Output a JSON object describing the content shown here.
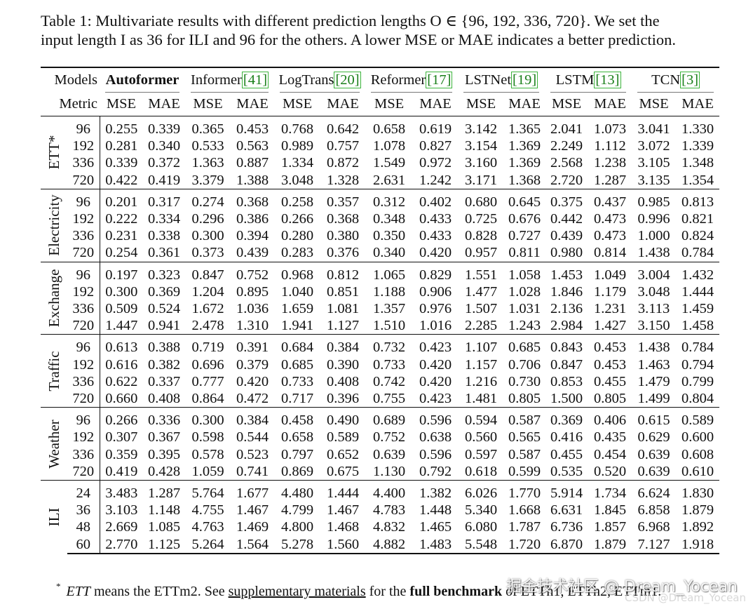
{
  "caption": {
    "line1": "Table 1: Multivariate results with different prediction lengths O ∈ {96, 192, 336, 720}. We set the",
    "line2": "input length I as 36 for ILI and 96 for the others. A lower MSE or MAE indicates a better prediction."
  },
  "header": {
    "models_label": "Models",
    "metric_label": "Metric",
    "models": [
      {
        "name": "Autoformer",
        "ref": ""
      },
      {
        "name": "Informer",
        "ref": "[41]"
      },
      {
        "name": "LogTrans",
        "ref": "[20]"
      },
      {
        "name": "Reformer",
        "ref": "[17]"
      },
      {
        "name": "LSTNet",
        "ref": "[19]"
      },
      {
        "name": "LSTM",
        "ref": "[13]"
      },
      {
        "name": "TCN",
        "ref": "[3]"
      }
    ],
    "metrics": [
      "MSE",
      "MAE"
    ]
  },
  "groups": [
    {
      "dataset": "ETT*",
      "rows": [
        {
          "len": "96",
          "values": [
            "0.255",
            "0.339",
            "0.365",
            "0.453",
            "0.768",
            "0.642",
            "0.658",
            "0.619",
            "3.142",
            "1.365",
            "2.041",
            "1.073",
            "3.041",
            "1.330"
          ]
        },
        {
          "len": "192",
          "values": [
            "0.281",
            "0.340",
            "0.533",
            "0.563",
            "0.989",
            "0.757",
            "1.078",
            "0.827",
            "3.154",
            "1.369",
            "2.249",
            "1.112",
            "3.072",
            "1.339"
          ]
        },
        {
          "len": "336",
          "values": [
            "0.339",
            "0.372",
            "1.363",
            "0.887",
            "1.334",
            "0.872",
            "1.549",
            "0.972",
            "3.160",
            "1.369",
            "2.568",
            "1.238",
            "3.105",
            "1.348"
          ]
        },
        {
          "len": "720",
          "values": [
            "0.422",
            "0.419",
            "3.379",
            "1.388",
            "3.048",
            "1.328",
            "2.631",
            "1.242",
            "3.171",
            "1.368",
            "2.720",
            "1.287",
            "3.135",
            "1.354"
          ]
        }
      ]
    },
    {
      "dataset": "Electricity",
      "rows": [
        {
          "len": "96",
          "values": [
            "0.201",
            "0.317",
            "0.274",
            "0.368",
            "0.258",
            "0.357",
            "0.312",
            "0.402",
            "0.680",
            "0.645",
            "0.375",
            "0.437",
            "0.985",
            "0.813"
          ]
        },
        {
          "len": "192",
          "values": [
            "0.222",
            "0.334",
            "0.296",
            "0.386",
            "0.266",
            "0.368",
            "0.348",
            "0.433",
            "0.725",
            "0.676",
            "0.442",
            "0.473",
            "0.996",
            "0.821"
          ]
        },
        {
          "len": "336",
          "values": [
            "0.231",
            "0.338",
            "0.300",
            "0.394",
            "0.280",
            "0.380",
            "0.350",
            "0.433",
            "0.828",
            "0.727",
            "0.439",
            "0.473",
            "1.000",
            "0.824"
          ]
        },
        {
          "len": "720",
          "values": [
            "0.254",
            "0.361",
            "0.373",
            "0.439",
            "0.283",
            "0.376",
            "0.340",
            "0.420",
            "0.957",
            "0.811",
            "0.980",
            "0.814",
            "1.438",
            "0.784"
          ]
        }
      ]
    },
    {
      "dataset": "Exchange",
      "rows": [
        {
          "len": "96",
          "values": [
            "0.197",
            "0.323",
            "0.847",
            "0.752",
            "0.968",
            "0.812",
            "1.065",
            "0.829",
            "1.551",
            "1.058",
            "1.453",
            "1.049",
            "3.004",
            "1.432"
          ]
        },
        {
          "len": "192",
          "values": [
            "0.300",
            "0.369",
            "1.204",
            "0.895",
            "1.040",
            "0.851",
            "1.188",
            "0.906",
            "1.477",
            "1.028",
            "1.846",
            "1.179",
            "3.048",
            "1.444"
          ]
        },
        {
          "len": "336",
          "values": [
            "0.509",
            "0.524",
            "1.672",
            "1.036",
            "1.659",
            "1.081",
            "1.357",
            "0.976",
            "1.507",
            "1.031",
            "2.136",
            "1.231",
            "3.113",
            "1.459"
          ]
        },
        {
          "len": "720",
          "values": [
            "1.447",
            "0.941",
            "2.478",
            "1.310",
            "1.941",
            "1.127",
            "1.510",
            "1.016",
            "2.285",
            "1.243",
            "2.984",
            "1.427",
            "3.150",
            "1.458"
          ]
        }
      ]
    },
    {
      "dataset": "Traffic",
      "rows": [
        {
          "len": "96",
          "values": [
            "0.613",
            "0.388",
            "0.719",
            "0.391",
            "0.684",
            "0.384",
            "0.732",
            "0.423",
            "1.107",
            "0.685",
            "0.843",
            "0.453",
            "1.438",
            "0.784"
          ]
        },
        {
          "len": "192",
          "values": [
            "0.616",
            "0.382",
            "0.696",
            "0.379",
            "0.685",
            "0.390",
            "0.733",
            "0.420",
            "1.157",
            "0.706",
            "0.847",
            "0.453",
            "1.463",
            "0.794"
          ]
        },
        {
          "len": "336",
          "values": [
            "0.622",
            "0.337",
            "0.777",
            "0.420",
            "0.733",
            "0.408",
            "0.742",
            "0.420",
            "1.216",
            "0.730",
            "0.853",
            "0.455",
            "1.479",
            "0.799"
          ]
        },
        {
          "len": "720",
          "values": [
            "0.660",
            "0.408",
            "0.864",
            "0.472",
            "0.717",
            "0.396",
            "0.755",
            "0.423",
            "1.481",
            "0.805",
            "1.500",
            "0.805",
            "1.499",
            "0.804"
          ]
        }
      ]
    },
    {
      "dataset": "Weather",
      "rows": [
        {
          "len": "96",
          "values": [
            "0.266",
            "0.336",
            "0.300",
            "0.384",
            "0.458",
            "0.490",
            "0.689",
            "0.596",
            "0.594",
            "0.587",
            "0.369",
            "0.406",
            "0.615",
            "0.589"
          ]
        },
        {
          "len": "192",
          "values": [
            "0.307",
            "0.367",
            "0.598",
            "0.544",
            "0.658",
            "0.589",
            "0.752",
            "0.638",
            "0.560",
            "0.565",
            "0.416",
            "0.435",
            "0.629",
            "0.600"
          ]
        },
        {
          "len": "336",
          "values": [
            "0.359",
            "0.395",
            "0.578",
            "0.523",
            "0.797",
            "0.652",
            "0.639",
            "0.596",
            "0.597",
            "0.587",
            "0.455",
            "0.454",
            "0.639",
            "0.608"
          ]
        },
        {
          "len": "720",
          "values": [
            "0.419",
            "0.428",
            "1.059",
            "0.741",
            "0.869",
            "0.675",
            "1.130",
            "0.792",
            "0.618",
            "0.599",
            "0.535",
            "0.520",
            "0.639",
            "0.610"
          ]
        }
      ]
    },
    {
      "dataset": "ILI",
      "rows": [
        {
          "len": "24",
          "values": [
            "3.483",
            "1.287",
            "5.764",
            "1.677",
            "4.480",
            "1.444",
            "4.400",
            "1.382",
            "6.026",
            "1.770",
            "5.914",
            "1.734",
            "6.624",
            "1.830"
          ]
        },
        {
          "len": "36",
          "values": [
            "3.103",
            "1.148",
            "4.755",
            "1.467",
            "4.799",
            "1.467",
            "4.783",
            "1.448",
            "5.340",
            "1.668",
            "6.631",
            "1.845",
            "6.858",
            "1.879"
          ]
        },
        {
          "len": "48",
          "values": [
            "2.669",
            "1.085",
            "4.763",
            "1.469",
            "4.800",
            "1.468",
            "4.832",
            "1.465",
            "6.080",
            "1.787",
            "6.736",
            "1.857",
            "6.968",
            "1.892"
          ]
        },
        {
          "len": "60",
          "values": [
            "2.770",
            "1.125",
            "5.264",
            "1.564",
            "5.278",
            "1.560",
            "4.882",
            "1.483",
            "5.548",
            "1.720",
            "6.870",
            "1.879",
            "7.127",
            "1.918"
          ]
        }
      ]
    }
  ],
  "footnote": {
    "star": "*",
    "ett": "ETT",
    "text1": " means the ETTm2. See ",
    "link": "supplementary materials",
    "text2": " for the ",
    "bold": "full benchmark",
    "text3": " of ETTh1, ETTh2, ETTm1."
  },
  "watermark": {
    "line1": "掘金技术社区 @ Dream_Yocean",
    "line2": "CSDN @Dream_Yocean"
  }
}
